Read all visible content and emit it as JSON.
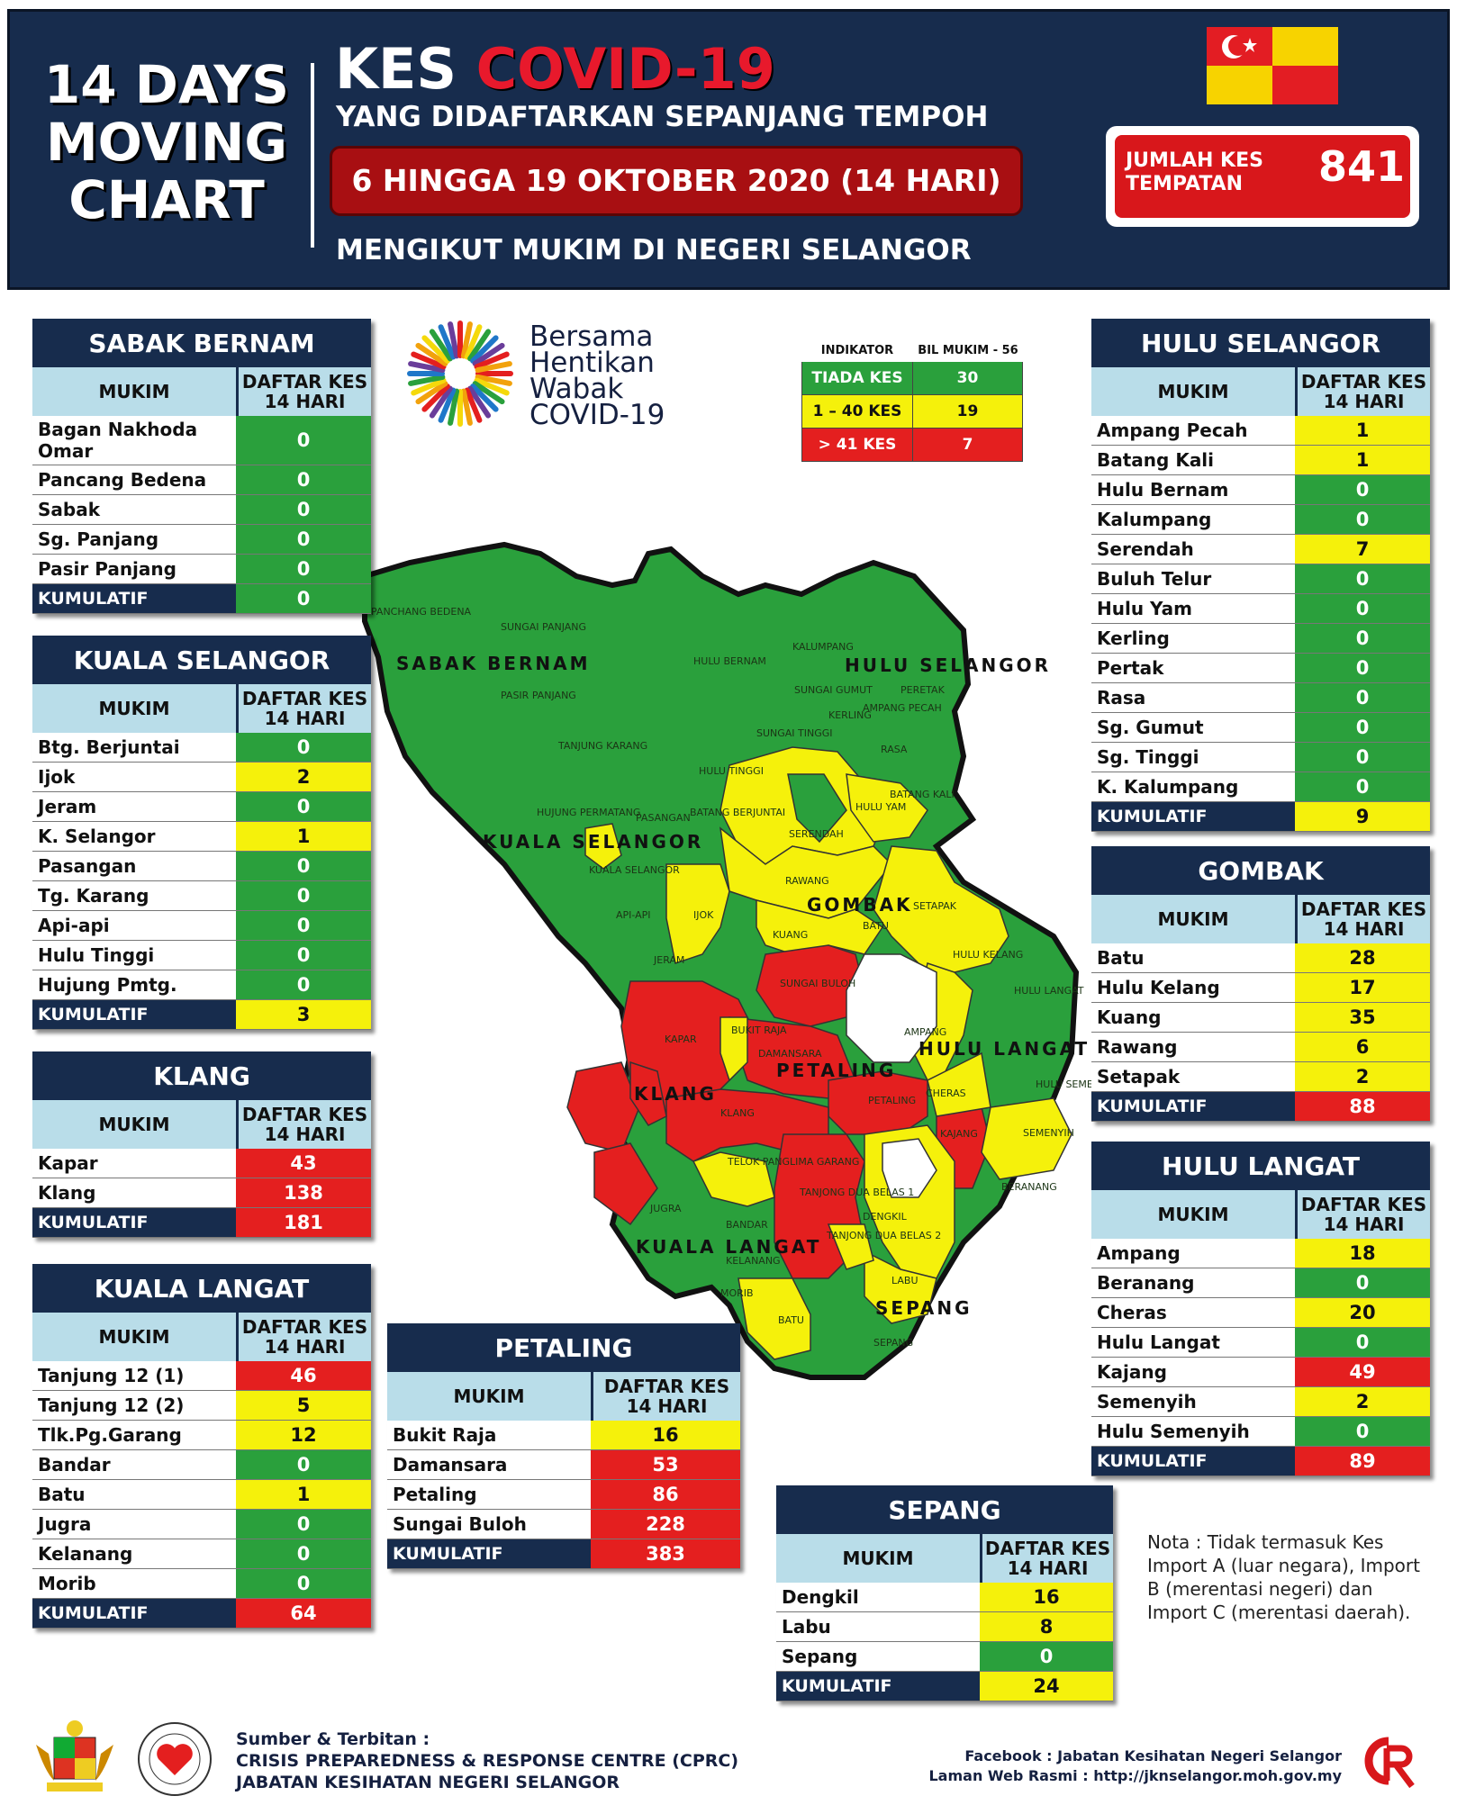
{
  "header": {
    "days_title": [
      "14 DAYS",
      "MOVING",
      "CHART"
    ],
    "kes_prefix": "KES",
    "kes_highlight": "COVID-19",
    "subtitle1": "YANG DIDAFTARKAN SEPANJANG TEMPOH",
    "date_range": "6 HINGGA 19 OKTOBER 2020 (14 HARI)",
    "subtitle2": "MENGIKUT MUKIM DI NEGERI SELANGOR",
    "jumlah_label": "JUMLAH KES TEMPATAN",
    "jumlah_value": "841"
  },
  "column_headers": {
    "mukim": "MUKIM",
    "daftar": "DAFTAR KES 14 HARI"
  },
  "kumulatif_label": "KUMULATIF",
  "colors": {
    "green": "#2aa03c",
    "yellow": "#f5f10b",
    "red": "#e41f1f",
    "navy": "#172c4d",
    "light_blue": "#b9dde9"
  },
  "legend": {
    "col1": "INDIKATOR",
    "col2": "BIL MUKIM - 56",
    "rows": [
      {
        "label": "TIADA KES",
        "count": "30",
        "color": "green"
      },
      {
        "label": "1 – 40 KES",
        "count": "19",
        "color": "yellow"
      },
      {
        "label": "> 41 KES",
        "count": "7",
        "color": "red"
      }
    ]
  },
  "logo": {
    "lines": [
      "Bersama",
      "Hentikan",
      "Wabak",
      "COVID-19"
    ]
  },
  "districts": {
    "sabak_bernam": {
      "title": "SABAK BERNAM",
      "rows": [
        {
          "name": "Bagan Nakhoda Omar",
          "value": "0",
          "color": "green"
        },
        {
          "name": "Pancang Bedena",
          "value": "0",
          "color": "green"
        },
        {
          "name": "Sabak",
          "value": "0",
          "color": "green"
        },
        {
          "name": "Sg. Panjang",
          "value": "0",
          "color": "green"
        },
        {
          "name": "Pasir Panjang",
          "value": "0",
          "color": "green"
        }
      ],
      "total": "0",
      "total_color": "green"
    },
    "kuala_selangor": {
      "title": "KUALA SELANGOR",
      "rows": [
        {
          "name": "Btg. Berjuntai",
          "value": "0",
          "color": "green"
        },
        {
          "name": "Ijok",
          "value": "2",
          "color": "yellow"
        },
        {
          "name": "Jeram",
          "value": "0",
          "color": "green"
        },
        {
          "name": "K. Selangor",
          "value": "1",
          "color": "yellow"
        },
        {
          "name": "Pasangan",
          "value": "0",
          "color": "green"
        },
        {
          "name": "Tg. Karang",
          "value": "0",
          "color": "green"
        },
        {
          "name": "Api-api",
          "value": "0",
          "color": "green"
        },
        {
          "name": "Hulu Tinggi",
          "value": "0",
          "color": "green"
        },
        {
          "name": "Hujung Pmtg.",
          "value": "0",
          "color": "green"
        }
      ],
      "total": "3",
      "total_color": "yellow"
    },
    "klang": {
      "title": "KLANG",
      "rows": [
        {
          "name": "Kapar",
          "value": "43",
          "color": "red"
        },
        {
          "name": "Klang",
          "value": "138",
          "color": "red"
        }
      ],
      "total": "181",
      "total_color": "red"
    },
    "kuala_langat": {
      "title": "KUALA LANGAT",
      "rows": [
        {
          "name": "Tanjung 12 (1)",
          "value": "46",
          "color": "red"
        },
        {
          "name": "Tanjung 12 (2)",
          "value": "5",
          "color": "yellow"
        },
        {
          "name": "Tlk.Pg.Garang",
          "value": "12",
          "color": "yellow"
        },
        {
          "name": "Bandar",
          "value": "0",
          "color": "green"
        },
        {
          "name": "Batu",
          "value": "1",
          "color": "yellow"
        },
        {
          "name": "Jugra",
          "value": "0",
          "color": "green"
        },
        {
          "name": "Kelanang",
          "value": "0",
          "color": "green"
        },
        {
          "name": "Morib",
          "value": "0",
          "color": "green"
        }
      ],
      "total": "64",
      "total_color": "red"
    },
    "petaling": {
      "title": "PETALING",
      "rows": [
        {
          "name": "Bukit Raja",
          "value": "16",
          "color": "yellow"
        },
        {
          "name": "Damansara",
          "value": "53",
          "color": "red"
        },
        {
          "name": "Petaling",
          "value": "86",
          "color": "red"
        },
        {
          "name": "Sungai Buloh",
          "value": "228",
          "color": "red"
        }
      ],
      "total": "383",
      "total_color": "red"
    },
    "sepang": {
      "title": "SEPANG",
      "rows": [
        {
          "name": "Dengkil",
          "value": "16",
          "color": "yellow"
        },
        {
          "name": "Labu",
          "value": "8",
          "color": "yellow"
        },
        {
          "name": "Sepang",
          "value": "0",
          "color": "green"
        }
      ],
      "total": "24",
      "total_color": "yellow"
    },
    "hulu_selangor": {
      "title": "HULU SELANGOR",
      "rows": [
        {
          "name": "Ampang Pecah",
          "value": "1",
          "color": "yellow"
        },
        {
          "name": "Batang Kali",
          "value": "1",
          "color": "yellow"
        },
        {
          "name": "Hulu Bernam",
          "value": "0",
          "color": "green"
        },
        {
          "name": "Kalumpang",
          "value": "0",
          "color": "green"
        },
        {
          "name": "Serendah",
          "value": "7",
          "color": "yellow"
        },
        {
          "name": "Buluh Telur",
          "value": "0",
          "color": "green"
        },
        {
          "name": "Hulu Yam",
          "value": "0",
          "color": "green"
        },
        {
          "name": "Kerling",
          "value": "0",
          "color": "green"
        },
        {
          "name": "Pertak",
          "value": "0",
          "color": "green"
        },
        {
          "name": "Rasa",
          "value": "0",
          "color": "green"
        },
        {
          "name": "Sg. Gumut",
          "value": "0",
          "color": "green"
        },
        {
          "name": "Sg. Tinggi",
          "value": "0",
          "color": "green"
        },
        {
          "name": "K. Kalumpang",
          "value": "0",
          "color": "green"
        }
      ],
      "total": "9",
      "total_color": "yellow"
    },
    "gombak": {
      "title": "GOMBAK",
      "rows": [
        {
          "name": "Batu",
          "value": "28",
          "color": "yellow"
        },
        {
          "name": "Hulu Kelang",
          "value": "17",
          "color": "yellow"
        },
        {
          "name": "Kuang",
          "value": "35",
          "color": "yellow"
        },
        {
          "name": "Rawang",
          "value": "6",
          "color": "yellow"
        },
        {
          "name": "Setapak",
          "value": "2",
          "color": "yellow"
        }
      ],
      "total": "88",
      "total_color": "red"
    },
    "hulu_langat": {
      "title": "HULU LANGAT",
      "rows": [
        {
          "name": "Ampang",
          "value": "18",
          "color": "yellow"
        },
        {
          "name": "Beranang",
          "value": "0",
          "color": "green"
        },
        {
          "name": "Cheras",
          "value": "20",
          "color": "yellow"
        },
        {
          "name": "Hulu Langat",
          "value": "0",
          "color": "green"
        },
        {
          "name": "Kajang",
          "value": "49",
          "color": "red"
        },
        {
          "name": "Semenyih",
          "value": "2",
          "color": "yellow"
        },
        {
          "name": "Hulu Semenyih",
          "value": "0",
          "color": "green"
        }
      ],
      "total": "89",
      "total_color": "red"
    }
  },
  "map": {
    "district_labels": [
      "SABAK BERNAM",
      "HULU SELANGOR",
      "KUALA SELANGOR",
      "GOMBAK",
      "KLANG",
      "PETALING",
      "HULU LANGAT",
      "KUALA LANGAT",
      "SEPANG"
    ],
    "mukim_labels": [
      "PANCHANG BEDENA",
      "SUNGAI PANJANG",
      "PASIR PANJANG",
      "HULU BERNAM",
      "KALUMPANG",
      "PERETAK",
      "SUNGAI GUMUT",
      "KERLING",
      "AMPANG PECAH",
      "SUNGAI TINGGI",
      "RASA",
      "TANJUNG KARANG",
      "HULU TINGGI",
      "BATANG KALI",
      "HULU YAM",
      "HUJUNG PERMATANG",
      "PASANGAN",
      "BATANG BERJUNTAI",
      "SERENDAH",
      "KUALA SELANGOR",
      "RAWANG",
      "API-API",
      "IJOK",
      "BATU",
      "SETAPAK",
      "KUANG",
      "HULU KELANG",
      "JERAM",
      "SUNGAI BULOH",
      "HULU LANGAT",
      "KAPAR",
      "BUKIT RAJA",
      "DAMANSARA",
      "AMPANG",
      "HULU SEMENYIH",
      "PETALING",
      "CHERAS",
      "KLANG",
      "KAJANG",
      "SEMENYIH",
      "TELOK PANGLIMA GARANG",
      "TANJONG DUA BELAS 1",
      "BERANANG",
      "JUGRA",
      "BANDAR",
      "DENGKIL",
      "TANJONG DUA BELAS 2",
      "KELANANG",
      "LABU",
      "MORIB",
      "BATU",
      "SEPANG"
    ]
  },
  "nota": "Nota : Tidak termasuk Kes Import A (luar negara), Import B (merentasi negeri) dan Import C (merentasi daerah).",
  "footer": {
    "sumber_title": "Sumber & Terbitan :",
    "sumber_line1": "CRISIS PREPAREDNESS & RESPONSE CENTRE (CPRC)",
    "sumber_line2": "JABATAN KESIHATAN NEGERI SELANGOR",
    "facebook": "Facebook : Jabatan Kesihatan Negeri Selangor",
    "website": "Laman Web Rasmi : http://jknselangor.moh.gov.my"
  }
}
